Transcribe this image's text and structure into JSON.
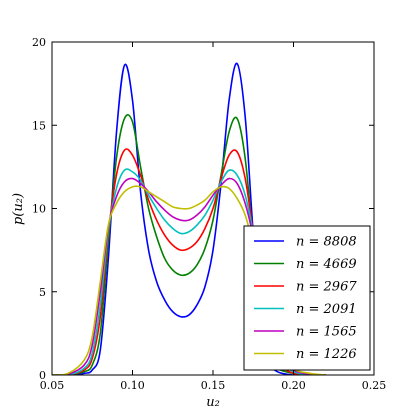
{
  "chart_data": {
    "type": "line",
    "title": "",
    "xlabel": "u₂",
    "ylabel": "p(u₂)",
    "xlim": [
      0.05,
      0.25
    ],
    "ylim": [
      0,
      20
    ],
    "xticks": [
      0.05,
      0.1,
      0.15,
      0.2,
      0.25
    ],
    "xtick_labels": [
      "0.05",
      "0.10",
      "0.15",
      "0.20",
      "0.25"
    ],
    "yticks": [
      0,
      5,
      10,
      15,
      20
    ],
    "ytick_labels": [
      "0",
      "5",
      "10",
      "15",
      "20"
    ],
    "grid": false,
    "legend_position": "lower-right",
    "x": [
      0.05,
      0.06,
      0.07,
      0.075,
      0.08,
      0.085,
      0.09,
      0.095,
      0.1,
      0.105,
      0.11,
      0.115,
      0.12,
      0.125,
      0.13,
      0.135,
      0.14,
      0.145,
      0.15,
      0.155,
      0.16,
      0.165,
      0.17,
      0.175,
      0.18,
      0.185,
      0.19,
      0.2,
      0.21,
      0.22
    ],
    "series": [
      {
        "name": "n = 8808",
        "color": "#0000ff",
        "values": [
          0,
          0,
          0.1,
          0.3,
          1.5,
          7.0,
          14.5,
          18.6,
          16.5,
          11.0,
          7.5,
          5.6,
          4.5,
          3.8,
          3.5,
          3.6,
          4.2,
          5.3,
          7.5,
          11.5,
          16.5,
          18.7,
          15.5,
          8.5,
          3.0,
          0.8,
          0.2,
          0,
          0,
          0
        ]
      },
      {
        "name": "n = 4669",
        "color": "#008000",
        "values": [
          0,
          0,
          0.2,
          0.6,
          2.5,
          8.0,
          13.0,
          15.4,
          15.2,
          12.5,
          10.0,
          8.3,
          7.0,
          6.3,
          6.0,
          6.1,
          6.6,
          7.6,
          9.3,
          12.0,
          14.6,
          15.4,
          13.0,
          8.0,
          3.5,
          1.2,
          0.4,
          0.1,
          0,
          0
        ]
      },
      {
        "name": "n = 2967",
        "color": "#ff0000",
        "values": [
          0,
          0,
          0.3,
          1.0,
          3.5,
          8.5,
          12.0,
          13.5,
          13.2,
          12.0,
          10.5,
          9.3,
          8.4,
          7.8,
          7.5,
          7.6,
          8.0,
          8.8,
          10.0,
          11.8,
          13.2,
          13.4,
          11.8,
          8.5,
          4.5,
          1.8,
          0.7,
          0.1,
          0,
          0
        ]
      },
      {
        "name": "n = 2091",
        "color": "#00c0c0",
        "values": [
          0,
          0,
          0.4,
          1.3,
          4.2,
          8.7,
          11.2,
          12.3,
          12.2,
          11.7,
          10.8,
          10.0,
          9.3,
          8.8,
          8.5,
          8.6,
          9.0,
          9.6,
          10.5,
          11.6,
          12.3,
          12.0,
          10.8,
          8.5,
          5.0,
          2.2,
          0.9,
          0.2,
          0,
          0
        ]
      },
      {
        "name": "n = 1565",
        "color": "#c000c0",
        "values": [
          0,
          0.05,
          0.6,
          1.8,
          5.0,
          8.9,
          10.7,
          11.6,
          11.8,
          11.5,
          11.0,
          10.4,
          9.9,
          9.5,
          9.3,
          9.3,
          9.6,
          10.1,
          10.8,
          11.4,
          11.8,
          11.5,
          10.3,
          8.3,
          5.5,
          2.8,
          1.2,
          0.3,
          0.05,
          0
        ]
      },
      {
        "name": "n = 1226",
        "color": "#bfbf00",
        "values": [
          0,
          0.1,
          0.9,
          2.3,
          5.6,
          9.0,
          10.3,
          11.0,
          11.3,
          11.3,
          11.0,
          10.7,
          10.4,
          10.1,
          10.0,
          10.0,
          10.2,
          10.5,
          11.0,
          11.3,
          11.2,
          10.6,
          9.6,
          7.8,
          5.6,
          3.2,
          1.6,
          0.4,
          0.1,
          0
        ]
      }
    ]
  }
}
